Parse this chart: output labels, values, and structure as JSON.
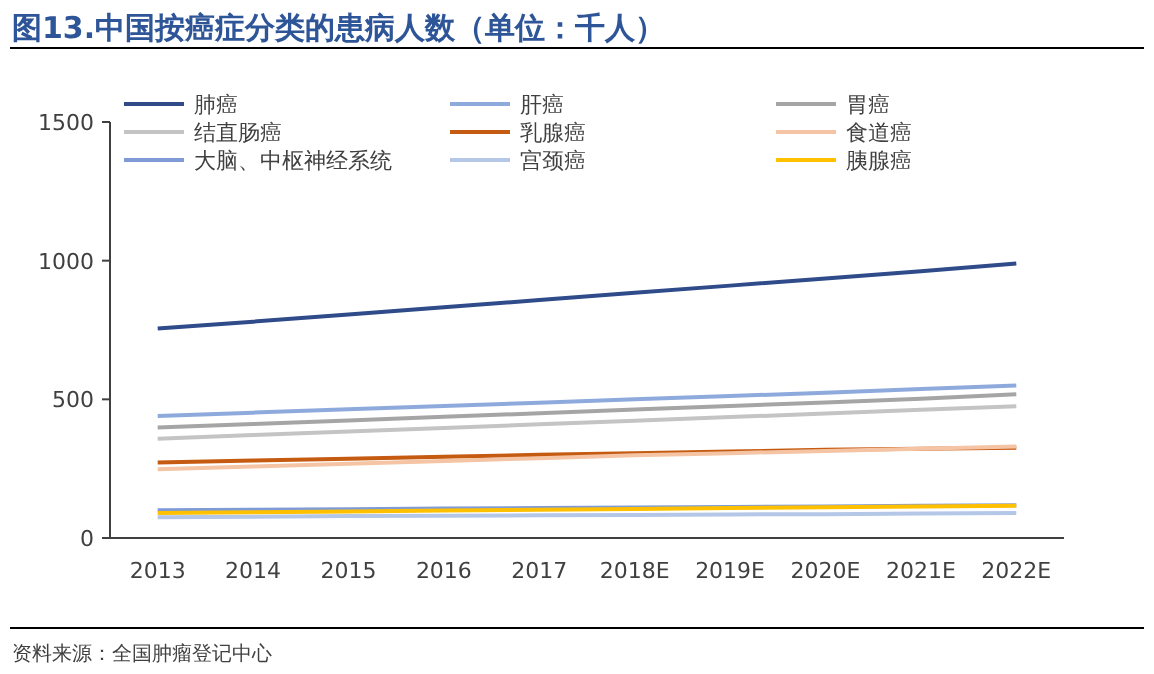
{
  "chart_data": {
    "type": "line",
    "title": "图13.中国按癌症分类的患病人数（单位：千人）",
    "categories": [
      "2013",
      "2014",
      "2015",
      "2016",
      "2017",
      "2018E",
      "2019E",
      "2020E",
      "2021E",
      "2022E"
    ],
    "series": [
      {
        "name": "肺癌",
        "color": "#2f4b8a",
        "values": [
          755,
          780,
          806,
          832,
          858,
          884,
          910,
          936,
          962,
          990
        ]
      },
      {
        "name": "肝癌",
        "color": "#8eaadc",
        "values": [
          440,
          452,
          464,
          476,
          488,
          500,
          512,
          524,
          537,
          550
        ]
      },
      {
        "name": "胃癌",
        "color": "#a5a5a5",
        "values": [
          398,
          411,
          424,
          437,
          450,
          463,
          476,
          489,
          502,
          518
        ]
      },
      {
        "name": "结直肠癌",
        "color": "#c4c4c4",
        "values": [
          358,
          371,
          384,
          397,
          410,
          423,
          436,
          449,
          462,
          475
        ]
      },
      {
        "name": "乳腺癌",
        "color": "#c55a11",
        "values": [
          272,
          279,
          286,
          293,
          300,
          306,
          312,
          318,
          322,
          325
        ]
      },
      {
        "name": "食道癌",
        "color": "#f4c4a4",
        "values": [
          248,
          258,
          268,
          278,
          288,
          298,
          306,
          314,
          322,
          330
        ]
      },
      {
        "name": "大脑、中枢神经系统",
        "color": "#7f9bd6",
        "values": [
          100,
          102,
          104,
          106,
          108,
          110,
          112,
          114,
          116,
          118
        ]
      },
      {
        "name": "宫颈癌",
        "color": "#b4c7e7",
        "values": [
          75,
          77,
          79,
          80,
          82,
          83,
          85,
          86,
          88,
          90
        ]
      },
      {
        "name": "胰腺癌",
        "color": "#ffc000",
        "values": [
          90,
          93,
          96,
          99,
          102,
          105,
          108,
          111,
          114,
          116
        ]
      }
    ],
    "ylim": [
      0,
      1500
    ],
    "yticks": [
      0,
      500,
      1000,
      1500
    ],
    "grid": false,
    "legend": "top",
    "marker": "none",
    "line_style": "solid",
    "annotations": [
      "资料来源：全国肿瘤登记中心"
    ]
  }
}
